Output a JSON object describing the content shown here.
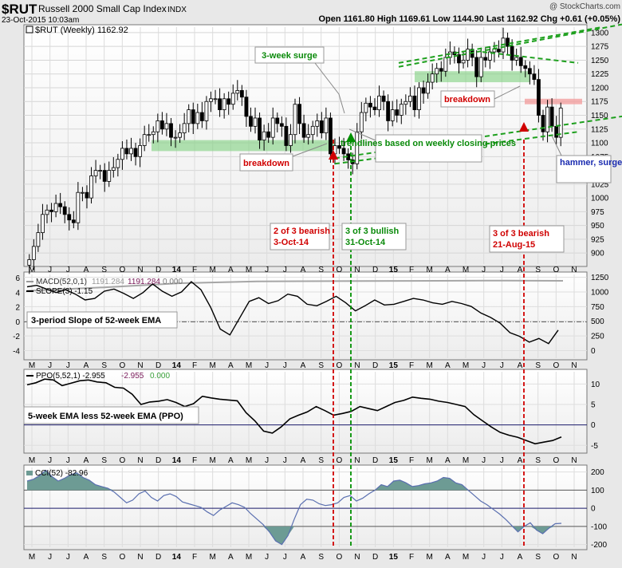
{
  "header": {
    "symbol": "$RUT",
    "name": "Russell 2000 Small Cap Index",
    "exchange": "INDX",
    "date": "23-Oct-2015 10:03am",
    "watermark": "@ StockCharts.com",
    "quote": "Open 1161.80   High 1169.61   Low 1144.90   Last 1162.92   Chg +0.61 (+0.05%)"
  },
  "colors": {
    "candle_up": "#ffffff",
    "candle_down": "#000000",
    "green_zone": "#7fd07f",
    "red_zone": "#f3a0a0",
    "trend_green": "#1ea01e",
    "marker_red": "#d00000",
    "marker_green": "#009000",
    "cci_fill": "#6d9b94"
  },
  "chart_data": [
    {
      "type": "candlestick",
      "panel": "price",
      "legend": "$RUT (Weekly) 1162.92",
      "ylim": [
        880,
        1310
      ],
      "yticks": [
        900,
        925,
        950,
        975,
        1000,
        1025,
        1050,
        1075,
        1100,
        1125,
        1150,
        1175,
        1200,
        1225,
        1250,
        1275,
        1300
      ],
      "x_axis_labels": [
        "M",
        "J",
        "J",
        "A",
        "S",
        "O",
        "N",
        "D",
        "14",
        "F",
        "M",
        "A",
        "M",
        "J",
        "J",
        "A",
        "S",
        "O",
        "N",
        "D",
        "15",
        "F",
        "M",
        "A",
        "M",
        "J",
        "J",
        "A",
        "S",
        "O",
        "N"
      ],
      "weekly_closes": [
        888,
        912,
        937,
        970,
        978,
        975,
        990,
        984,
        970,
        960,
        955,
        1010,
        1010,
        1000,
        1040,
        1050,
        1050,
        1030,
        1050,
        1055,
        1070,
        1090,
        1080,
        1090,
        1075,
        1095,
        1115,
        1115,
        1120,
        1140,
        1125,
        1135,
        1110,
        1110,
        1118,
        1135,
        1160,
        1135,
        1155,
        1140,
        1175,
        1180,
        1180,
        1160,
        1180,
        1170,
        1190,
        1195,
        1183,
        1148,
        1130,
        1145,
        1105,
        1120,
        1110,
        1145,
        1135,
        1130,
        1095,
        1115,
        1170,
        1135,
        1110,
        1115,
        1130,
        1140,
        1118,
        1145,
        1080,
        1095,
        1090,
        1080,
        1069,
        1062,
        1120,
        1155,
        1172,
        1165,
        1160,
        1185,
        1175,
        1140,
        1160,
        1150,
        1170,
        1175,
        1185,
        1160,
        1200,
        1190,
        1210,
        1225,
        1235,
        1230,
        1255,
        1265,
        1260,
        1245,
        1250,
        1270,
        1255,
        1220,
        1255,
        1250,
        1265,
        1270,
        1265,
        1290,
        1275,
        1250,
        1255,
        1240,
        1235,
        1225,
        1215,
        1150,
        1120,
        1165,
        1130,
        1110,
        1163
      ],
      "annotations": [
        "3-week surge",
        "breakdown",
        "trendlines based on weekly closing prices",
        "breakdown",
        "hammer, surge and ....",
        "2 of 3 bearish",
        "3-Oct-14",
        "3 of 3 bullish",
        "31-Oct-14",
        "3 of 3 bearish",
        "21-Aug-15"
      ]
    },
    {
      "type": "line",
      "panel": "macd-slope",
      "legend_macd": "MACD(52,0,1)",
      "macd_value_a": "1191.284",
      "macd_value_b": "1191.284",
      "macd_value_c": "0.000",
      "legend_slope": "SLOPE(3) -1.15",
      "annotation": "3-period Slope of 52-week EMA",
      "left_ticks": [
        6,
        4,
        2,
        0,
        -2,
        -4
      ],
      "right_ticks": [
        1250,
        1000,
        750,
        500,
        250,
        0
      ],
      "left_lim": [
        -5,
        6.5
      ],
      "right_lim": [
        -130,
        1300
      ],
      "series": [
        {
          "name": "MACD(52,0,1)",
          "axis": "right",
          "values": [
            1020,
            1080,
            1150,
            1180,
            1185,
            1190,
            1195,
            1191
          ]
        },
        {
          "name": "SLOPE(3)",
          "axis": "left",
          "values": [
            4.8,
            5.0,
            4.5,
            4.0,
            4.4,
            3.8,
            3.0,
            3.2,
            4.2,
            4.5,
            3.9,
            3.2,
            4.0,
            5.2,
            4.2,
            3.5,
            4.1,
            5.5,
            4.4,
            2.0,
            -1.0,
            -1.8,
            0.5,
            2.8,
            3.3,
            2.5,
            2.9,
            3.8,
            3.5,
            2.4,
            2.2,
            2.8,
            3.5,
            2.6,
            1.5,
            2.2,
            3.0,
            2.3,
            2.4,
            2.8,
            3.2,
            3.0,
            2.6,
            2.4,
            2.8,
            2.5,
            2.1,
            1.2,
            0.6,
            -0.2,
            -1.5,
            -2.0,
            -2.8,
            -2.3,
            -3.0,
            -1.15
          ]
        }
      ]
    },
    {
      "type": "line",
      "panel": "ppo",
      "legend": "PPO(5,52,1) -2.955",
      "legend_values": [
        "-2.955",
        "0.000"
      ],
      "annotation": "5-week EMA less 52-week EMA (PPO)",
      "ticks": [
        10,
        5,
        0,
        -5
      ],
      "ylim": [
        -6.5,
        13
      ],
      "series": [
        {
          "name": "PPO(5,52,1)",
          "values": [
            9.8,
            10.3,
            11.2,
            11.0,
            9.6,
            10.2,
            10.8,
            11.0,
            10.5,
            10.3,
            9.2,
            9.0,
            7.5,
            5.0,
            5.6,
            5.8,
            6.2,
            5.5,
            4.5,
            5.2,
            7.0,
            6.6,
            6.3,
            6.1,
            5.9,
            3.0,
            1.0,
            -1.5,
            -2.0,
            -0.5,
            1.5,
            2.4,
            3.2,
            4.5,
            3.5,
            2.4,
            2.8,
            3.3,
            4.5,
            4.0,
            3.5,
            4.5,
            5.5,
            6.0,
            6.8,
            6.5,
            6.3,
            5.8,
            5.5,
            5.0,
            4.5,
            2.5,
            1.0,
            -0.5,
            -1.8,
            -2.5,
            -3.0,
            -3.8,
            -4.6,
            -4.2,
            -3.8,
            -2.955
          ]
        }
      ]
    },
    {
      "type": "area",
      "panel": "cci",
      "legend": "CCI(52) -82.96",
      "ticks": [
        200,
        100,
        0,
        -100,
        -200
      ],
      "ylim": [
        -215,
        225
      ],
      "series": [
        {
          "name": "CCI(52)",
          "values": [
            150,
            160,
            180,
            210,
            175,
            150,
            165,
            185,
            195,
            170,
            155,
            130,
            120,
            110,
            90,
            60,
            30,
            45,
            80,
            95,
            60,
            40,
            70,
            80,
            65,
            35,
            25,
            15,
            5,
            -20,
            -40,
            -10,
            10,
            30,
            20,
            5,
            -30,
            -60,
            -90,
            -130,
            -180,
            -200,
            -150,
            -60,
            20,
            50,
            45,
            25,
            15,
            20,
            30,
            60,
            70,
            40,
            55,
            80,
            100,
            130,
            120,
            150,
            155,
            140,
            120,
            125,
            135,
            140,
            150,
            170,
            165,
            140,
            130,
            100,
            70,
            40,
            20,
            -5,
            -30,
            -60,
            -95,
            -130,
            -100,
            -80,
            -120,
            -140,
            -110,
            -85,
            -83
          ]
        }
      ]
    }
  ]
}
